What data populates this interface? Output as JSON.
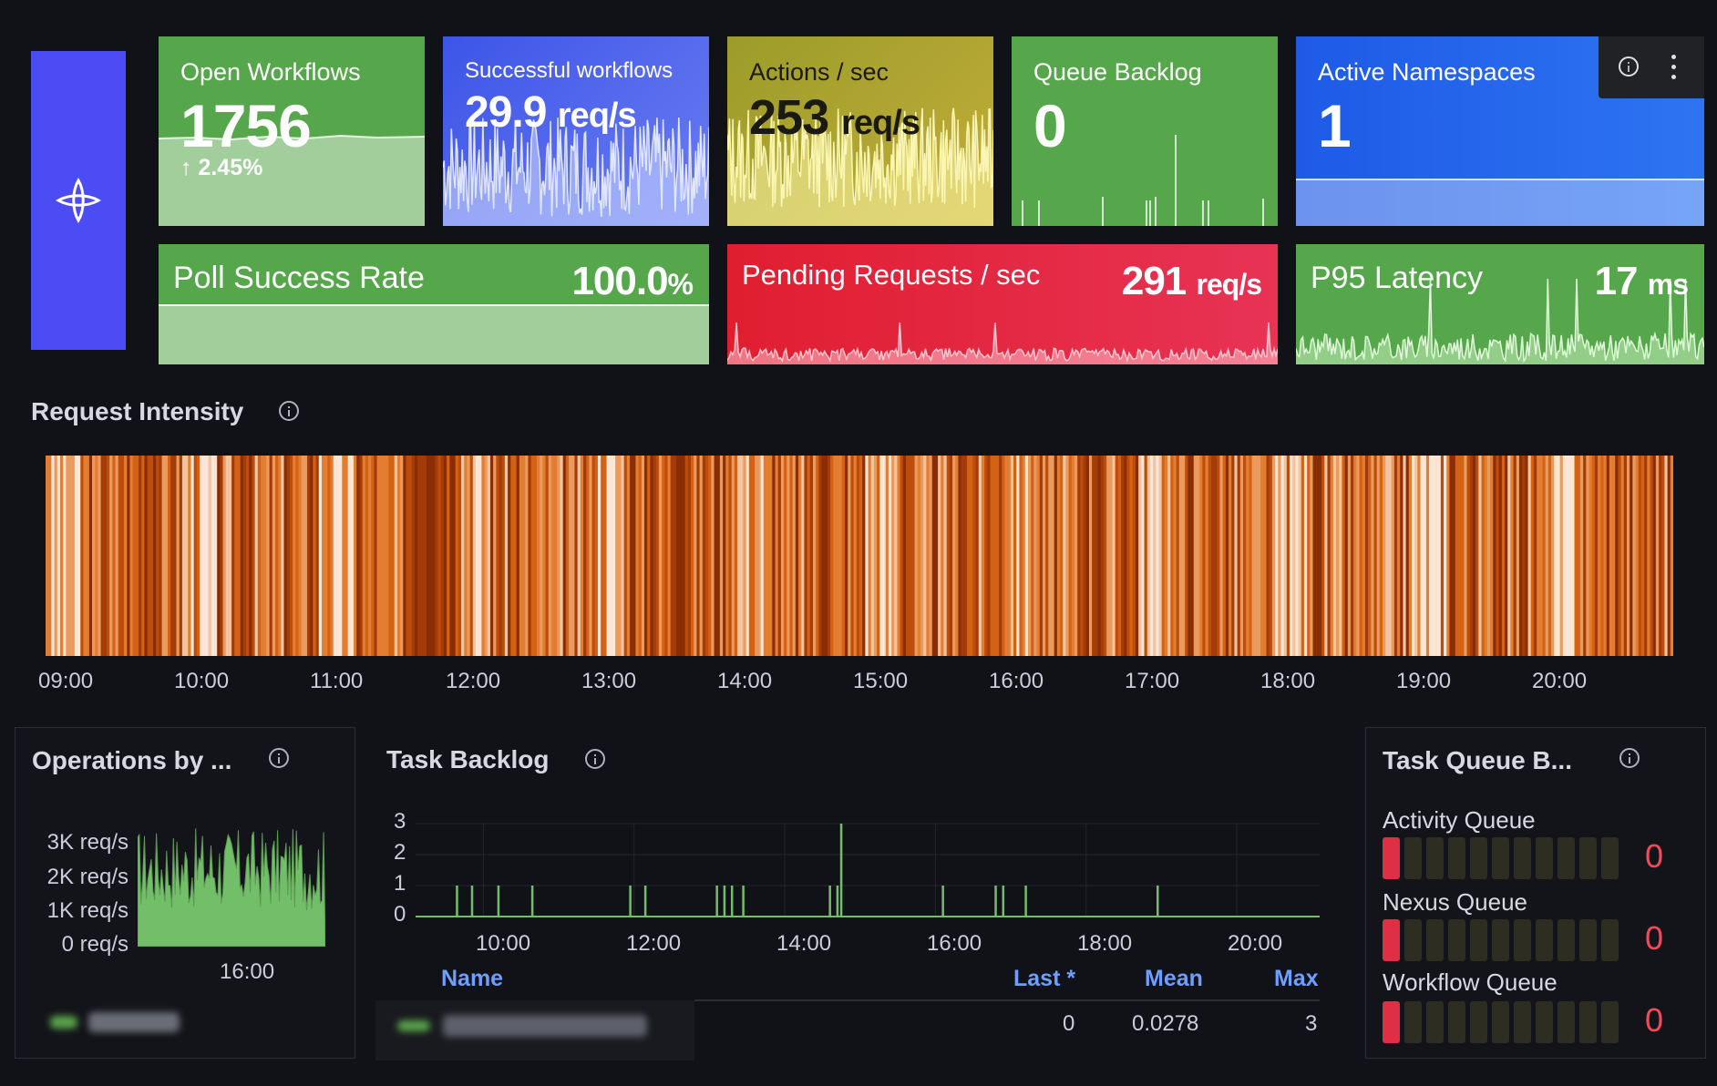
{
  "logo": {
    "icon": "temporal-logo-icon",
    "bg": "#4c4cf5"
  },
  "stats": {
    "open_workflows": {
      "title": "Open Workflows",
      "value": "1756",
      "delta": "↑ 2.45%",
      "color": "#56a64b"
    },
    "successful_workflows": {
      "title": "Successful workflows",
      "value": "29.9",
      "unit": "req/s",
      "color": "#4f6cf0"
    },
    "actions_sec": {
      "title": "Actions / sec",
      "value": "253",
      "unit": "req/s",
      "color": "#b6a72e"
    },
    "queue_backlog": {
      "title": "Queue Backlog",
      "value": "0",
      "color": "#56a64b"
    },
    "active_namespaces": {
      "title": "Active Namespaces",
      "value": "1",
      "color": "#1f60e8"
    },
    "poll_success_rate": {
      "title": "Poll Success Rate",
      "value": "100.0",
      "unit": "%",
      "color": "#56a64b"
    },
    "pending_requests": {
      "title": "Pending Requests / sec",
      "value": "291",
      "unit": "req/s",
      "color": "#e0243a"
    },
    "p95_latency": {
      "title": "P95 Latency",
      "value": "17",
      "unit": "ms",
      "color": "#56a64b"
    }
  },
  "request_intensity": {
    "title": "Request Intensity",
    "x_ticks": [
      "09:00",
      "10:00",
      "11:00",
      "12:00",
      "13:00",
      "14:00",
      "15:00",
      "16:00",
      "17:00",
      "18:00",
      "19:00",
      "20:00"
    ]
  },
  "operations_panel": {
    "title": "Operations by ...",
    "chart_data": {
      "type": "bar",
      "y_ticks": [
        "3K req/s",
        "2K req/s",
        "1K req/s",
        "0 req/s"
      ],
      "x_ticks": [
        "16:00"
      ],
      "ylim": [
        0,
        3500
      ],
      "series_color": "#73bf69"
    }
  },
  "task_backlog": {
    "title": "Task Backlog",
    "chart_data": {
      "type": "line",
      "y_ticks": [
        "3",
        "2",
        "1",
        "0"
      ],
      "x_ticks": [
        "10:00",
        "12:00",
        "14:00",
        "16:00",
        "18:00",
        "20:00"
      ],
      "ylim": [
        0,
        3
      ],
      "x_hours": [
        9.65,
        9.85,
        10.2,
        10.65,
        11.95,
        12.15,
        13.1,
        13.2,
        13.3,
        13.45,
        14.6,
        14.7,
        14.75,
        16.1,
        16.8,
        16.9,
        17.2,
        18.95
      ],
      "values": [
        1,
        1,
        1,
        1,
        1,
        1,
        1,
        1,
        1,
        1,
        1,
        1,
        3,
        1,
        1,
        1,
        1,
        1
      ]
    },
    "legend": {
      "headers": {
        "name": "Name",
        "last": "Last *",
        "mean": "Mean",
        "max": "Max"
      },
      "row": {
        "last": "0",
        "mean": "0.0278",
        "max": "3"
      }
    }
  },
  "task_queue_panel": {
    "title": "Task Queue B...",
    "queues": [
      {
        "label": "Activity Queue",
        "value": "0"
      },
      {
        "label": "Nexus Queue",
        "value": "0"
      },
      {
        "label": "Workflow Queue",
        "value": "0"
      }
    ]
  }
}
